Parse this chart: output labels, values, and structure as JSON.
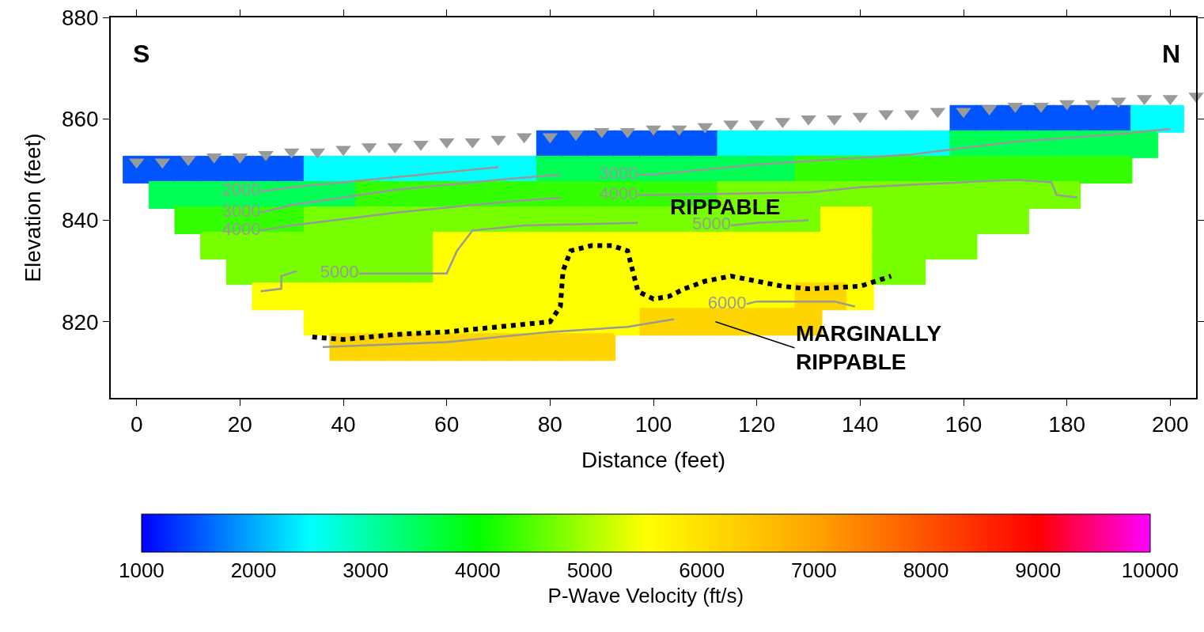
{
  "chart_data": {
    "type": "scatter",
    "xlabel": "Distance (feet)",
    "ylabel": "Elevation (feet)",
    "clabel": "P-Wave Velocity (ft/s)",
    "clim": [
      1000,
      10000
    ],
    "cticks": [
      1000,
      2000,
      3000,
      4000,
      5000,
      6000,
      7000,
      8000,
      9000,
      10000
    ],
    "xlim": [
      -5,
      205
    ],
    "xticks": [
      0,
      20,
      40,
      60,
      80,
      100,
      120,
      140,
      160,
      180,
      200
    ],
    "ylim": [
      805,
      880
    ],
    "yticks": [
      820,
      840,
      860,
      880
    ],
    "grid": false,
    "legend": false,
    "series": [
      {
        "type": "scatter",
        "marker": "square",
        "colors": [
          "#0055ff",
          "#0055ff",
          "#00ff55",
          "#0055ff",
          "#00ff55",
          "#33ff00",
          "#0055ff",
          "#00ff55",
          "#33ff00",
          "#77ff00",
          "#0055ff",
          "#00ff55",
          "#33ff00",
          "#77ff00",
          "#77ff00",
          "#0055ff",
          "#00ff55",
          "#33ff00",
          "#77ff00",
          "#77ff00",
          "#ffff00",
          "#0055ff",
          "#00ff55",
          "#33ff00",
          "#77ff00",
          "#77ff00",
          "#ffff00",
          "#00ffff",
          "#00ff55",
          "#77ff00",
          "#77ff00",
          "#77ff00",
          "#ffff00",
          "#ffff00",
          "#00ffff",
          "#00ff55",
          "#77ff00",
          "#77ff00",
          "#77ff00",
          "#ffff00",
          "#ffff00",
          "#ffd500",
          "#00ffff",
          "#33ff00",
          "#77ff00",
          "#77ff00",
          "#77ff00",
          "#ffff00",
          "#ffff00",
          "#ffd500",
          "#00ffff",
          "#33ff00",
          "#77ff00",
          "#77ff00",
          "#77ff00",
          "#ffff00",
          "#ffff00",
          "#ffd500",
          "#00ffff",
          "#33ff00",
          "#77ff00",
          "#77ff00",
          "#77ff00",
          "#ffff00",
          "#ffff00",
          "#ffd500",
          "#00ffff",
          "#33ff00",
          "#77ff00",
          "#ffff00",
          "#ffff00",
          "#ffff00",
          "#ffff00",
          "#ffd500",
          "#00ffff",
          "#33ff00",
          "#77ff00",
          "#ffff00",
          "#ffff00",
          "#ffff00",
          "#ffff00",
          "#ffd500",
          "#00ffff",
          "#33ff00",
          "#77ff00",
          "#ffff00",
          "#ffff00",
          "#ffff00",
          "#ffff00",
          "#ffd500",
          "#00ffff",
          "#33ff00",
          "#77ff00",
          "#ffff00",
          "#ffff00",
          "#ffff00",
          "#ffff00",
          "#ffd500",
          "#0055ff",
          "#00ff55",
          "#33ff00",
          "#77ff00",
          "#ffff00",
          "#ffff00",
          "#ffff00",
          "#ffff00",
          "#ffd500",
          "#0055ff",
          "#00ff55",
          "#33ff00",
          "#77ff00",
          "#ffff00",
          "#ffff00",
          "#ffff00",
          "#ffff00",
          "#ffd500",
          "#0055ff",
          "#00ff55",
          "#33ff00",
          "#77ff00",
          "#ffff00",
          "#ffff00",
          "#ffff00",
          "#ffff00",
          "#ffd500",
          "#0055ff",
          "#00ff55",
          "#33ff00",
          "#77ff00",
          "#ffff00",
          "#ffff00",
          "#ffff00",
          "#ffff00",
          "#0055ff",
          "#00ff55",
          "#33ff00",
          "#77ff00",
          "#ffff00",
          "#ffff00",
          "#ffff00",
          "#ffd500",
          "#0055ff",
          "#00ff55",
          "#33ff00",
          "#77ff00",
          "#ffff00",
          "#ffff00",
          "#ffff00",
          "#ffd500",
          "#0055ff",
          "#00ff55",
          "#33ff00",
          "#77ff00",
          "#ffff00",
          "#ffff00",
          "#ffff00",
          "#ffd500",
          "#00ffff",
          "#00ff55",
          "#77ff00",
          "#77ff00",
          "#ffff00",
          "#ffff00",
          "#ffff00",
          "#ffd500",
          "#00ffff",
          "#00ff55",
          "#77ff00",
          "#77ff00",
          "#ffff00",
          "#ffff00",
          "#ffff00",
          "#ffd500",
          "#00ffff",
          "#00ff55",
          "#77ff00",
          "#77ff00",
          "#ffff00",
          "#ffff00",
          "#ffff00",
          "#ffd500",
          "#00ffff",
          "#33ff00",
          "#77ff00",
          "#77ff00",
          "#ffff00",
          "#ffff00",
          "#ffd500",
          "#ffd500",
          "#00ffff",
          "#33ff00",
          "#77ff00",
          "#ffff00",
          "#ffff00",
          "#ffff00",
          "#ffd500",
          "#00ffff",
          "#33ff00",
          "#77ff00",
          "#ffff00",
          "#ffff00",
          "#ffff00",
          "#ffff00",
          "#00ffff",
          "#33ff00",
          "#77ff00",
          "#77ff00",
          "#77ff00",
          "#77ff00",
          "#00ffff",
          "#33ff00",
          "#77ff00",
          "#77ff00",
          "#77ff00",
          "#77ff00",
          "#00ffff",
          "#33ff00",
          "#77ff00",
          "#77ff00",
          "#77ff00",
          "#0055ff",
          "#00ff55",
          "#33ff00",
          "#77ff00",
          "#77ff00",
          "#77ff00",
          "#0055ff",
          "#00ff55",
          "#33ff00",
          "#77ff00",
          "#77ff00",
          "#0055ff",
          "#00ff55",
          "#33ff00",
          "#77ff00",
          "#77ff00",
          "#0055ff",
          "#00ff55",
          "#33ff00",
          "#77ff00",
          "#0055ff",
          "#00ff55",
          "#33ff00",
          "#77ff00",
          "#0055ff",
          "#00ff55",
          "#33ff00",
          "#0055ff",
          "#00ff55",
          "#33ff00",
          "#00ffff",
          "#00ff55",
          "#00ffff"
        ],
        "x": [
          0,
          5,
          5,
          10,
          10,
          10,
          15,
          15,
          15,
          15,
          20,
          20,
          20,
          20,
          20,
          25,
          25,
          25,
          25,
          25,
          25,
          30,
          30,
          30,
          30,
          30,
          30,
          35,
          35,
          35,
          35,
          35,
          35,
          35,
          40,
          40,
          40,
          40,
          40,
          40,
          40,
          40,
          45,
          45,
          45,
          45,
          45,
          45,
          45,
          45,
          50,
          50,
          50,
          50,
          50,
          50,
          50,
          50,
          55,
          55,
          55,
          55,
          55,
          55,
          55,
          55,
          60,
          60,
          60,
          60,
          60,
          60,
          60,
          60,
          65,
          65,
          65,
          65,
          65,
          65,
          65,
          65,
          70,
          70,
          70,
          70,
          70,
          70,
          70,
          70,
          75,
          75,
          75,
          75,
          75,
          75,
          75,
          75,
          80,
          80,
          80,
          80,
          80,
          80,
          80,
          80,
          80,
          85,
          85,
          85,
          85,
          85,
          85,
          85,
          85,
          85,
          90,
          90,
          90,
          90,
          90,
          90,
          90,
          90,
          90,
          95,
          95,
          95,
          95,
          95,
          95,
          95,
          95,
          100,
          100,
          100,
          100,
          100,
          100,
          100,
          100,
          105,
          105,
          105,
          105,
          105,
          105,
          105,
          105,
          110,
          110,
          110,
          110,
          110,
          110,
          110,
          110,
          115,
          115,
          115,
          115,
          115,
          115,
          115,
          115,
          120,
          120,
          120,
          120,
          120,
          120,
          120,
          120,
          125,
          125,
          125,
          125,
          125,
          125,
          125,
          125,
          130,
          130,
          130,
          130,
          130,
          130,
          130,
          130,
          135,
          135,
          135,
          135,
          135,
          135,
          135,
          140,
          140,
          140,
          140,
          140,
          140,
          140,
          145,
          145,
          145,
          145,
          145,
          145,
          150,
          150,
          150,
          150,
          150,
          150,
          155,
          155,
          155,
          155,
          155,
          160,
          160,
          160,
          160,
          160,
          160,
          165,
          165,
          165,
          165,
          165,
          170,
          170,
          170,
          170,
          170,
          175,
          175,
          175,
          175,
          180,
          180,
          180,
          180,
          185,
          185,
          185,
          190,
          190,
          190,
          195,
          195,
          200
        ],
        "values": [
          850,
          850,
          845,
          850,
          845,
          840,
          850,
          845,
          840,
          835,
          850,
          845,
          840,
          835,
          830,
          850,
          845,
          840,
          835,
          830,
          825,
          850,
          845,
          840,
          835,
          830,
          825,
          850,
          845,
          840,
          835,
          830,
          825,
          820,
          850,
          845,
          840,
          835,
          830,
          825,
          820,
          815,
          850,
          845,
          840,
          835,
          830,
          825,
          820,
          815,
          850,
          845,
          840,
          835,
          830,
          825,
          820,
          815,
          850,
          845,
          840,
          835,
          830,
          825,
          820,
          815,
          850,
          845,
          840,
          835,
          830,
          825,
          820,
          815,
          850,
          845,
          840,
          835,
          830,
          825,
          820,
          815,
          850,
          845,
          840,
          835,
          830,
          825,
          820,
          815,
          850,
          845,
          840,
          835,
          830,
          825,
          820,
          815,
          855,
          850,
          845,
          840,
          835,
          830,
          825,
          820,
          815,
          855,
          850,
          845,
          840,
          835,
          830,
          825,
          820,
          815,
          855,
          850,
          845,
          840,
          835,
          830,
          825,
          820,
          815,
          855,
          850,
          845,
          840,
          835,
          830,
          825,
          820,
          855,
          850,
          845,
          840,
          835,
          830,
          825,
          820,
          855,
          850,
          845,
          840,
          835,
          830,
          825,
          820,
          855,
          850,
          845,
          840,
          835,
          830,
          825,
          820,
          855,
          850,
          845,
          840,
          835,
          830,
          825,
          820,
          855,
          850,
          845,
          840,
          835,
          830,
          825,
          820,
          855,
          850,
          845,
          840,
          835,
          830,
          825,
          820,
          855,
          850,
          845,
          840,
          835,
          830,
          825,
          820,
          855,
          850,
          845,
          840,
          835,
          830,
          825,
          855,
          850,
          845,
          840,
          835,
          830,
          825,
          855,
          850,
          845,
          840,
          835,
          830,
          855,
          850,
          845,
          840,
          835,
          830,
          855,
          850,
          845,
          840,
          835,
          860,
          855,
          850,
          845,
          840,
          835,
          860,
          855,
          850,
          845,
          840,
          860,
          855,
          850,
          845,
          840,
          860,
          855,
          850,
          845,
          860,
          855,
          850,
          845,
          860,
          855,
          850,
          860,
          855,
          850,
          860,
          855,
          860
        ],
        "cvalues": [
          1500,
          1500,
          3500,
          1500,
          3500,
          4300,
          1500,
          3500,
          4300,
          4700,
          1500,
          3500,
          4300,
          4700,
          4700,
          1500,
          3500,
          4300,
          4700,
          4700,
          5500,
          1500,
          3500,
          4300,
          4700,
          4700,
          5500,
          2500,
          3500,
          4700,
          4700,
          4700,
          5500,
          5500,
          2500,
          3500,
          4700,
          4700,
          4700,
          5500,
          5500,
          6200,
          2500,
          4300,
          4700,
          4700,
          4700,
          5500,
          5500,
          6200,
          2500,
          4300,
          4700,
          4700,
          4700,
          5500,
          5500,
          6200,
          2500,
          4300,
          4700,
          4700,
          4700,
          5500,
          5500,
          6200,
          2500,
          4300,
          4700,
          5500,
          5500,
          5500,
          5500,
          6200,
          2500,
          4300,
          4700,
          5500,
          5500,
          5500,
          5500,
          6200,
          2500,
          4300,
          4700,
          5500,
          5500,
          5500,
          5500,
          6200,
          2500,
          4300,
          4700,
          5500,
          5500,
          5500,
          5500,
          6200,
          1500,
          3500,
          4300,
          4700,
          5500,
          5500,
          5500,
          5500,
          6200,
          1500,
          3500,
          4300,
          4700,
          5500,
          5500,
          5500,
          5500,
          6200,
          1500,
          3500,
          4300,
          4700,
          5500,
          5500,
          5500,
          5500,
          6200,
          1500,
          3500,
          4300,
          4700,
          5500,
          5500,
          5500,
          5500,
          1500,
          3500,
          4300,
          4700,
          5500,
          5500,
          5500,
          6200,
          1500,
          3500,
          4300,
          4700,
          5500,
          5500,
          5500,
          6200,
          1500,
          3500,
          4300,
          4700,
          5500,
          5500,
          5500,
          6200,
          2500,
          3500,
          4700,
          4700,
          5500,
          5500,
          5500,
          6200,
          2500,
          3500,
          4700,
          4700,
          5500,
          5500,
          5500,
          6200,
          2500,
          3500,
          4700,
          4700,
          5500,
          5500,
          5500,
          6200,
          2500,
          4300,
          4700,
          4700,
          5500,
          5500,
          6200,
          6200,
          2500,
          4300,
          4700,
          5500,
          5500,
          5500,
          6200,
          2500,
          4300,
          4700,
          5500,
          5500,
          5500,
          5500,
          2500,
          4300,
          4700,
          4700,
          4700,
          4700,
          2500,
          4300,
          4700,
          4700,
          4700,
          4700,
          2500,
          4300,
          4700,
          4700,
          4700,
          1500,
          3500,
          4300,
          4700,
          4700,
          4700,
          1500,
          3500,
          4300,
          4700,
          4700,
          1500,
          3500,
          4300,
          4700,
          4700,
          1500,
          3500,
          4300,
          4700,
          1500,
          3500,
          4300,
          4700,
          1500,
          3500,
          4300,
          1500,
          3500,
          4300,
          2500,
          3500,
          2500
        ]
      },
      {
        "type": "line",
        "name": "2000",
        "color": "#999999",
        "x": [
          24,
          30,
          50,
          70
        ],
        "values": [
          845.7,
          846.5,
          848.5,
          850.5
        ]
      },
      {
        "type": "line",
        "name": "3000",
        "color": "#999999",
        "x": [
          24,
          30,
          50,
          70,
          82
        ],
        "values": [
          841.5,
          843,
          846,
          848,
          849
        ]
      },
      {
        "type": "line",
        "name": "3000",
        "color": "#999999",
        "x": [
          97,
          100,
          120,
          150,
          170,
          190,
          200
        ],
        "values": [
          849,
          849,
          851,
          853,
          855.5,
          857,
          858
        ]
      },
      {
        "type": "line",
        "name": "4000",
        "color": "#999999",
        "x": [
          24,
          30,
          50,
          70,
          82
        ],
        "values": [
          838,
          839,
          841.5,
          843.5,
          844.5
        ]
      },
      {
        "type": "line",
        "name": "4000",
        "color": "#999999",
        "x": [
          97,
          100,
          130,
          140,
          170,
          177,
          178,
          182
        ],
        "values": [
          845,
          845,
          845.5,
          846.5,
          848,
          847.5,
          845,
          844.5
        ]
      },
      {
        "type": "line",
        "color": "#999999",
        "x": [
          24,
          28,
          28,
          31
        ],
        "values": [
          826,
          826.5,
          829,
          830
        ]
      },
      {
        "type": "line",
        "name": "5000",
        "color": "#999999",
        "x": [
          43,
          60,
          62,
          65,
          75,
          97
        ],
        "values": [
          829.5,
          829.5,
          834,
          838,
          839,
          839.5
        ]
      },
      {
        "type": "line",
        "name": "5000",
        "color": "#999999",
        "x": [
          115,
          120,
          130
        ],
        "values": [
          839,
          839.5,
          840
        ]
      },
      {
        "type": "line",
        "color": "#999999",
        "x": [
          36,
          60,
          80,
          95,
          104
        ],
        "values": [
          815,
          816,
          818,
          819,
          820.5
        ]
      },
      {
        "type": "line",
        "name": "6000",
        "color": "#999999",
        "x": [
          118,
          120,
          135,
          139
        ],
        "values": [
          823.5,
          824,
          824,
          823
        ]
      },
      {
        "type": "line",
        "color": "#000000",
        "line_style": "dotted",
        "x": [
          34,
          40,
          50,
          60,
          70,
          80,
          82,
          82.5,
          84,
          88,
          92,
          95,
          96,
          97,
          100,
          103,
          106,
          110,
          115,
          120,
          125,
          130,
          140,
          146
        ],
        "values": [
          817,
          816.5,
          817.5,
          818,
          819,
          820,
          823,
          830,
          834,
          835,
          835,
          834,
          830,
          826,
          824.5,
          825,
          826.5,
          828,
          829,
          828,
          827,
          826.5,
          827,
          829
        ]
      },
      {
        "type": "scatter",
        "color": "#9a9a9a",
        "marker": "triangle",
        "x": [
          0,
          5,
          10,
          15,
          20,
          25,
          30,
          35,
          40,
          45,
          50,
          55,
          60,
          65,
          70,
          75,
          80,
          85,
          90,
          95,
          100,
          105,
          110,
          115,
          120,
          125,
          130,
          135,
          140,
          145,
          150,
          155,
          160,
          165,
          170,
          175,
          180,
          185,
          190,
          195,
          200,
          205
        ],
        "values": [
          851.5,
          851.5,
          852,
          852.5,
          852.5,
          853,
          853.5,
          853.5,
          854,
          854.5,
          854.5,
          855,
          855.5,
          855.5,
          856,
          856.5,
          856.5,
          857,
          857.5,
          857.5,
          858,
          858,
          858.5,
          859,
          859,
          859.5,
          860,
          860,
          860.5,
          861,
          861,
          861.5,
          861.5,
          862,
          862.5,
          862.5,
          863,
          863,
          863.5,
          864,
          864,
          864.5
        ]
      }
    ],
    "annotations": [
      "S",
      "N",
      "RIPPABLE",
      {
        "text": "MARGINALLY\nRIPPABLE",
        "x": 112,
        "y": 820
      }
    ]
  }
}
